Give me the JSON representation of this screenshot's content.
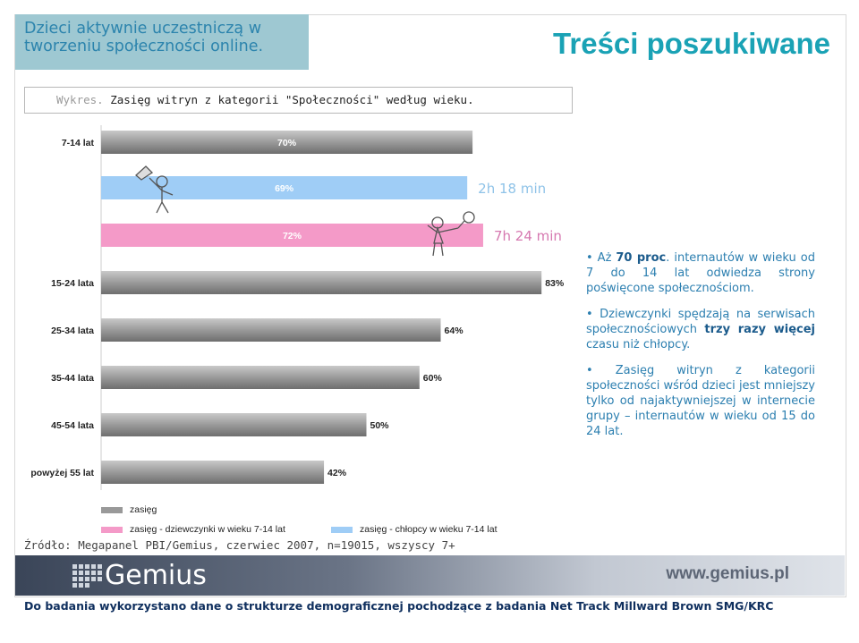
{
  "header": {
    "left_text": "Dzieci aktywnie uczestniczą w tworzeniu społeczności online.",
    "title": "Treści poszukiwane"
  },
  "chart_caption": {
    "label": "Wykres.",
    "text": "Zasięg witryn z kategorii \"Społeczności\" według wieku."
  },
  "chart_data": {
    "type": "bar",
    "orientation": "horizontal",
    "title": "Zasięg witryn z kategorii \"Społeczności\" według wieku.",
    "categories": [
      "7-14 lat",
      "",
      "",
      "15-24 lata",
      "25-34 lata",
      "35-44 lata",
      "45-54 lata",
      "powyżej 55 lat"
    ],
    "bars": [
      {
        "category": "7-14 lat",
        "series": "zasięg",
        "value": 70,
        "label": "70%"
      },
      {
        "category": "",
        "series": "zasięg - chłopcy w wieku 7-14 lat",
        "value": 69,
        "label": "69%",
        "annotation": "2h 18 min"
      },
      {
        "category": "",
        "series": "zasięg - dziewczynki w wieku 7-14 lat",
        "value": 72,
        "label": "72%",
        "annotation": "7h 24 min"
      },
      {
        "category": "15-24 lata",
        "series": "zasięg",
        "value": 83,
        "label": "83%"
      },
      {
        "category": "25-34 lata",
        "series": "zasięg",
        "value": 64,
        "label": "64%"
      },
      {
        "category": "35-44 lata",
        "series": "zasięg",
        "value": 60,
        "label": "60%"
      },
      {
        "category": "45-54 lata",
        "series": "zasięg",
        "value": 50,
        "label": "50%"
      },
      {
        "category": "powyżej 55 lat",
        "series": "zasięg",
        "value": 42,
        "label": "42%"
      }
    ],
    "xlim": [
      0,
      100
    ],
    "legend": [
      {
        "name": "zasięg",
        "color": "#999999"
      },
      {
        "name": "zasięg  - dziewczynki w wieku 7-14 lat",
        "color": "#f49ac8"
      },
      {
        "name": "zasięg  -  chłopcy w wieku 7-14 lat",
        "color": "#9fcdf6"
      }
    ],
    "legend_position": "bottom-left",
    "grid": false,
    "colors": {
      "zasieg": "#999999",
      "girls": "#f49ac8",
      "boys": "#9fcdf6",
      "annotation_boys": "#8fc3e8",
      "annotation_girls": "#d678b0"
    }
  },
  "bullets": [
    {
      "parts": [
        [
          "text",
          "Aż "
        ],
        [
          "bold",
          "70 proc"
        ],
        [
          "text",
          ". internautów w wieku od 7 do 14 lat odwiedza strony poświęcone społecznościom."
        ]
      ]
    },
    {
      "parts": [
        [
          "text",
          "Dziewczynki spędzają na serwisach społecznościowych "
        ],
        [
          "bold",
          "trzy razy więcej"
        ],
        [
          "text",
          " czasu niż chłopcy."
        ]
      ]
    },
    {
      "parts": [
        [
          "text",
          "Zasięg witryn z kategorii społeczności wśród dzieci jest mniejszy tylko od najaktywniejszej w internecie grupy – internautów w wieku od 15 do 24 lat."
        ]
      ]
    }
  ],
  "source": "Źródło: Megapanel PBI/Gemius, czerwiec 2007, n=19015, wszyscy 7+",
  "brand": {
    "logo": "Gemius",
    "url": "www.gemius.pl"
  },
  "footer": "Do badania wykorzystano dane o strukturze demograficznej pochodzące z badania Net Track Millward Brown SMG/KRC"
}
